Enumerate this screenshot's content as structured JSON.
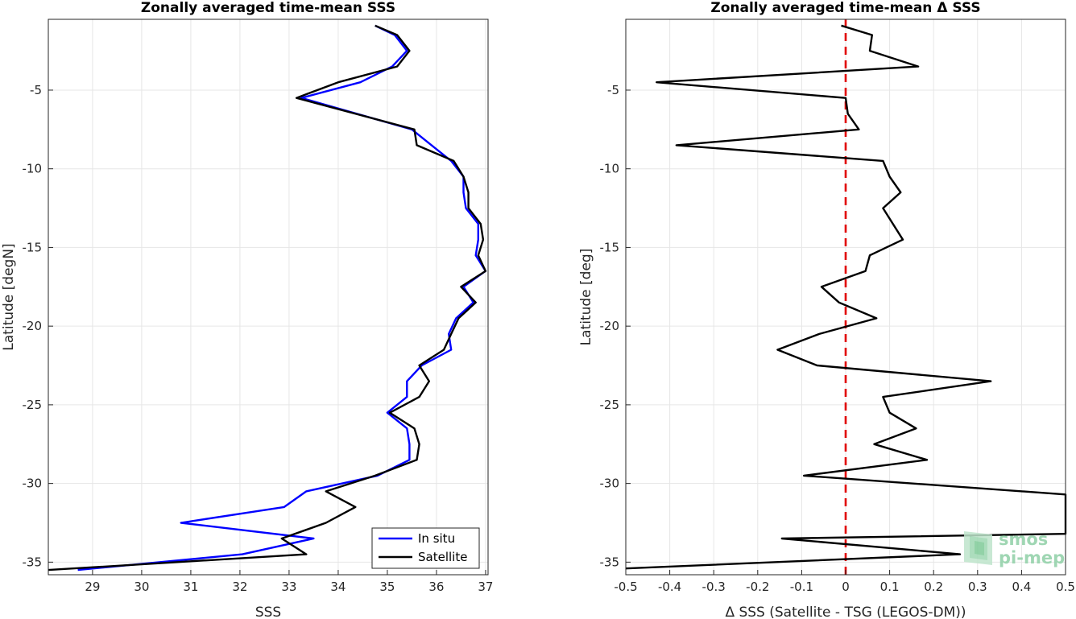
{
  "colors": {
    "insitu": "#0000ff",
    "satellite": "#000000",
    "zero_line": "#e00000",
    "grid": "#e6e6e6",
    "axis": "#262626",
    "logo": "#8fd0a6"
  },
  "logo": {
    "line1": "smos",
    "line2": "pi-mep"
  },
  "chart_data": [
    {
      "type": "line",
      "title": "Zonally averaged time-mean SSS",
      "xlabel": "SSS",
      "ylabel": "Latitude [degN]",
      "xlim": [
        28.1,
        37.05
      ],
      "ylim": [
        -35.8,
        -0.5
      ],
      "xticks": [
        29,
        30,
        31,
        32,
        33,
        34,
        35,
        36,
        37
      ],
      "yticks": [
        -5,
        -10,
        -15,
        -20,
        -25,
        -30,
        -35
      ],
      "grid": true,
      "legend": {
        "placement": "bottom-right",
        "entries": [
          "In situ",
          "Satellite"
        ]
      },
      "series": [
        {
          "name": "In situ",
          "color": "#0000ff",
          "x": [
            34.75,
            35.15,
            35.4,
            35.1,
            34.45,
            33.25,
            35.5,
            35.9,
            36.3,
            36.55,
            36.55,
            36.6,
            36.85,
            36.85,
            36.8,
            37.0,
            36.55,
            36.75,
            36.4,
            36.25,
            36.3,
            35.7,
            35.4,
            35.4,
            35.0,
            35.4,
            35.45,
            35.45,
            34.8,
            33.35,
            32.9,
            30.8,
            33.5,
            32.05,
            28.7
          ],
          "y": [
            -0.9,
            -1.5,
            -2.5,
            -3.5,
            -4.5,
            -5.5,
            -7.5,
            -8.5,
            -9.5,
            -10.5,
            -11.5,
            -12.5,
            -13.5,
            -14.5,
            -15.5,
            -16.5,
            -17.5,
            -18.5,
            -19.5,
            -20.5,
            -21.5,
            -22.5,
            -23.5,
            -24.5,
            -25.5,
            -26.5,
            -27.5,
            -28.5,
            -29.5,
            -30.5,
            -31.5,
            -32.5,
            -33.5,
            -34.5,
            -35.5
          ]
        },
        {
          "name": "Satellite",
          "color": "#000000",
          "x": [
            34.75,
            35.2,
            35.45,
            35.2,
            34.0,
            33.15,
            35.55,
            35.6,
            36.35,
            36.55,
            36.65,
            36.65,
            36.9,
            36.95,
            36.85,
            37.0,
            36.5,
            36.8,
            36.45,
            36.3,
            36.15,
            35.65,
            35.85,
            35.65,
            35.05,
            35.55,
            35.65,
            35.6,
            34.75,
            33.75,
            34.35,
            33.75,
            32.85,
            33.35,
            28.1
          ],
          "y": [
            -0.9,
            -1.5,
            -2.5,
            -3.5,
            -4.5,
            -5.5,
            -7.5,
            -8.5,
            -9.5,
            -10.5,
            -11.5,
            -12.5,
            -13.5,
            -14.5,
            -15.5,
            -16.5,
            -17.5,
            -18.5,
            -19.5,
            -20.5,
            -21.5,
            -22.5,
            -23.5,
            -24.5,
            -25.5,
            -26.5,
            -27.5,
            -28.5,
            -29.5,
            -30.5,
            -31.5,
            -32.5,
            -33.5,
            -34.5,
            -35.5
          ]
        }
      ]
    },
    {
      "type": "line",
      "title": "Zonally averaged time-mean Δ SSS",
      "xlabel": "Δ SSS (Satellite - TSG (LEGOS-DM))",
      "ylabel": "Latitude [deg]",
      "xlim": [
        -0.5,
        0.5
      ],
      "ylim": [
        -35.8,
        -0.5
      ],
      "xticks": [
        -0.5,
        -0.4,
        -0.3,
        -0.2,
        -0.1,
        0,
        0.1,
        0.2,
        0.3,
        0.4,
        0.5
      ],
      "xticklabels": [
        "-0.5",
        "-0.4",
        "-0.3",
        "-0.2",
        "-0.1",
        "0",
        "0.1",
        "0.2",
        "0.3",
        "0.4",
        "0.5"
      ],
      "yticks": [
        -5,
        -10,
        -15,
        -20,
        -25,
        -30,
        -35
      ],
      "grid": true,
      "reference_line": {
        "x": 0,
        "style": "dashed",
        "color": "#e00000"
      },
      "series": [
        {
          "name": "",
          "color": "#000000",
          "x": [
            -0.01,
            0.06,
            0.055,
            0.165,
            -0.43,
            0.0,
            0.005,
            0.03,
            -0.385,
            0.085,
            0.1,
            0.125,
            0.085,
            0.13,
            0.055,
            0.045,
            -0.055,
            -0.015,
            0.07,
            -0.06,
            -0.155,
            -0.065,
            0.33,
            0.085,
            0.1,
            0.16,
            0.065,
            0.185,
            -0.095,
            0.5,
            0.5,
            0.5,
            -0.145,
            0.26,
            -0.5
          ],
          "y": [
            -0.9,
            -1.5,
            -2.5,
            -3.5,
            -4.5,
            -5.5,
            -6.5,
            -7.5,
            -8.5,
            -9.5,
            -10.5,
            -11.5,
            -12.5,
            -14.5,
            -15.5,
            -16.5,
            -17.5,
            -18.5,
            -19.5,
            -20.5,
            -21.5,
            -22.5,
            -23.5,
            -24.5,
            -25.5,
            -26.5,
            -27.5,
            -28.5,
            -29.5,
            -30.7,
            -32.5,
            -33.2,
            -33.5,
            -34.5,
            -35.4
          ]
        }
      ]
    }
  ]
}
